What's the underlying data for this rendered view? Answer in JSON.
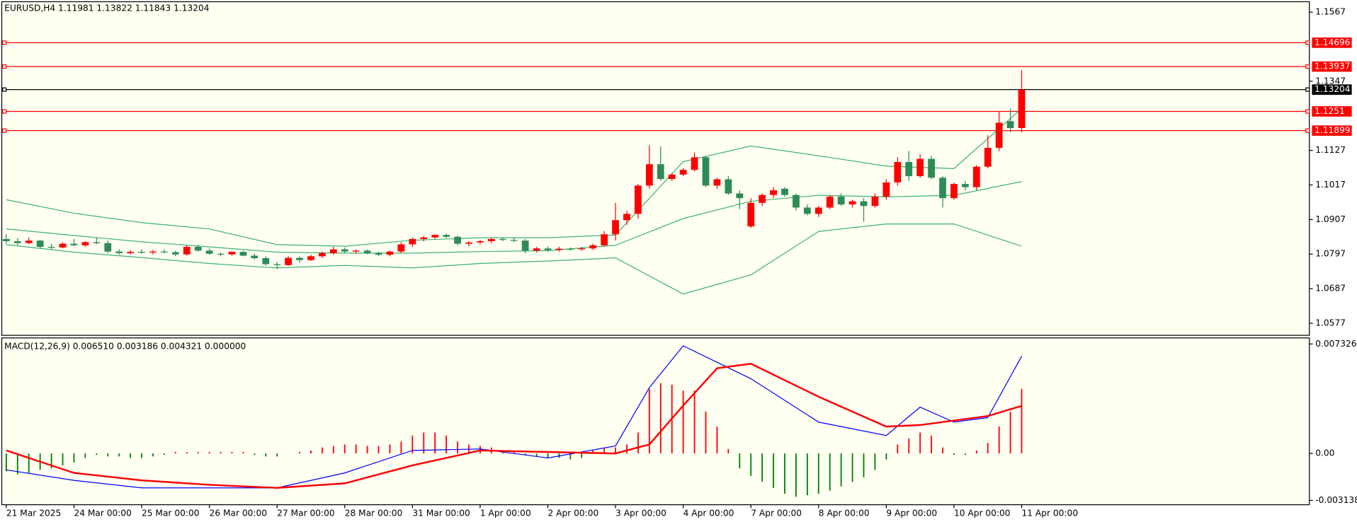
{
  "chart_data": [
    {
      "type": "candlestick",
      "title": "EURUSD,H4  1.11981 1.13822 1.11843 1.13204",
      "up_color": "#ff0000",
      "down_color": "#2e8b57",
      "open": [
        1.0845,
        1.0838,
        1.0832,
        1.084,
        1.082,
        1.0818,
        1.083,
        1.0825,
        1.0835,
        1.0832,
        1.0805,
        1.08,
        1.0804,
        1.0802,
        1.0805,
        1.0803,
        1.0796,
        1.082,
        1.0808,
        1.0798,
        1.0796,
        1.0804,
        1.0792,
        1.0784,
        1.0765,
        1.0762,
        1.0785,
        1.0778,
        1.079,
        1.08,
        1.0812,
        1.0805,
        1.0808,
        1.08,
        1.0795,
        1.0805,
        1.0828,
        1.0845,
        1.085,
        1.0858,
        1.0852,
        1.083,
        1.0834,
        1.0838,
        1.0845,
        1.0842,
        1.084,
        1.0808,
        1.0815,
        1.081,
        1.0814,
        1.0812,
        1.0815,
        1.0825,
        1.086,
        1.0905,
        1.0925,
        1.1015,
        1.1083,
        1.1036,
        1.105,
        1.1065,
        1.1105,
        1.1015,
        1.1035,
        1.099,
        1.0885,
        1.096,
        1.0985,
        1.1005,
        1.0985,
        1.0945,
        1.0925,
        1.0945,
        1.098,
        1.0955,
        1.0965,
        1.095,
        1.098,
        1.1025,
        1.109,
        1.1045,
        1.11,
        1.104,
        1.0975,
        1.102,
        1.101,
        1.1075,
        1.1135,
        1.122,
        1.11981
      ],
      "high": [
        1.086,
        1.0848,
        1.085,
        1.0842,
        1.083,
        1.0835,
        1.0845,
        1.0838,
        1.085,
        1.084,
        1.0812,
        1.081,
        1.0812,
        1.081,
        1.0812,
        1.0808,
        1.0825,
        1.0826,
        1.0815,
        1.0802,
        1.0806,
        1.0808,
        1.0798,
        1.079,
        1.0772,
        1.079,
        1.079,
        1.0795,
        1.0805,
        1.082,
        1.0818,
        1.0812,
        1.0812,
        1.0805,
        1.0808,
        1.0835,
        1.085,
        1.0855,
        1.086,
        1.0862,
        1.0856,
        1.0838,
        1.0842,
        1.0848,
        1.085,
        1.0848,
        1.0845,
        1.082,
        1.0822,
        1.082,
        1.0818,
        1.082,
        1.083,
        1.087,
        1.096,
        1.0935,
        1.102,
        1.1143,
        1.114,
        1.1055,
        1.107,
        1.112,
        1.111,
        1.104,
        1.1045,
        1.1,
        1.0975,
        1.099,
        1.101,
        1.101,
        1.099,
        1.0955,
        1.095,
        1.0985,
        1.099,
        1.097,
        1.0975,
        1.099,
        1.1035,
        1.1105,
        1.1125,
        1.1115,
        1.111,
        1.1045,
        1.1025,
        1.103,
        1.108,
        1.1175,
        1.125,
        1.126,
        1.13822
      ],
      "low": [
        1.083,
        1.0825,
        1.0828,
        1.0815,
        1.0812,
        1.0815,
        1.0822,
        1.082,
        1.0828,
        1.08,
        1.0795,
        1.0796,
        1.0798,
        1.0796,
        1.08,
        1.079,
        1.0792,
        1.0805,
        1.0795,
        1.079,
        1.0792,
        1.079,
        1.078,
        1.076,
        1.075,
        1.076,
        1.077,
        1.0775,
        1.0785,
        1.0795,
        1.08,
        1.0798,
        1.0796,
        1.079,
        1.079,
        1.08,
        1.082,
        1.0838,
        1.0845,
        1.0848,
        1.0825,
        1.0822,
        1.0828,
        1.0832,
        1.0838,
        1.0835,
        1.08,
        1.0802,
        1.0805,
        1.0805,
        1.0808,
        1.0808,
        1.081,
        1.082,
        1.084,
        1.089,
        1.091,
        1.1005,
        1.103,
        1.103,
        1.1045,
        1.106,
        1.101,
        1.1005,
        1.0985,
        1.094,
        1.088,
        1.095,
        1.0975,
        1.098,
        1.0935,
        1.092,
        1.0915,
        1.094,
        1.095,
        1.0945,
        1.09,
        1.0945,
        1.097,
        1.1015,
        1.103,
        1.104,
        1.1035,
        1.0945,
        1.097,
        1.1,
        1.1,
        1.107,
        1.1125,
        1.1185,
        1.11843
      ],
      "close": [
        1.0838,
        1.0832,
        1.084,
        1.082,
        1.0818,
        1.083,
        1.0825,
        1.0835,
        1.0832,
        1.0805,
        1.08,
        1.0804,
        1.0802,
        1.0805,
        1.0803,
        1.0796,
        1.082,
        1.0808,
        1.0798,
        1.0796,
        1.0804,
        1.0792,
        1.0784,
        1.0765,
        1.0762,
        1.0785,
        1.0778,
        1.079,
        1.08,
        1.0812,
        1.0805,
        1.0808,
        1.08,
        1.0795,
        1.0805,
        1.0828,
        1.0845,
        1.085,
        1.0858,
        1.0852,
        1.083,
        1.0834,
        1.0838,
        1.0845,
        1.0842,
        1.084,
        1.0808,
        1.0815,
        1.081,
        1.0814,
        1.0812,
        1.0815,
        1.0825,
        1.086,
        1.0905,
        1.0925,
        1.1015,
        1.1083,
        1.1036,
        1.105,
        1.1065,
        1.1105,
        1.1015,
        1.1035,
        1.099,
        1.0975,
        1.096,
        1.0985,
        1.1,
        1.0985,
        1.0945,
        1.0925,
        1.0945,
        1.098,
        1.0955,
        1.0965,
        1.095,
        1.098,
        1.1025,
        1.109,
        1.1045,
        1.11,
        1.104,
        1.0975,
        1.102,
        1.101,
        1.1075,
        1.1135,
        1.1215,
        1.1198,
        1.13204
      ],
      "bands": [
        {
          "color": "#3cb371",
          "x": [
            0,
            6,
            12,
            18,
            24,
            30,
            36,
            42,
            48,
            54,
            60,
            66,
            72,
            78,
            84,
            90
          ],
          "values": [
            1.097,
            1.0927,
            1.0897,
            1.0877,
            1.0827,
            1.0822,
            1.0841,
            1.0849,
            1.0849,
            1.0858,
            1.1091,
            1.1141,
            1.111,
            1.1077,
            1.1069,
            1.126
          ]
        },
        {
          "color": "#3cb371",
          "x": [
            0,
            6,
            12,
            18,
            24,
            30,
            36,
            42,
            48,
            54,
            60,
            66,
            72,
            78,
            84,
            90
          ],
          "values": [
            1.0877,
            1.0856,
            1.0836,
            1.082,
            1.0803,
            1.08,
            1.08,
            1.0805,
            1.0808,
            1.0825,
            1.091,
            1.0965,
            1.0984,
            1.0979,
            1.0984,
            1.1028
          ]
        },
        {
          "color": "#3cb371",
          "x": [
            0,
            6,
            12,
            18,
            24,
            30,
            36,
            42,
            48,
            54,
            60,
            66,
            72,
            78,
            84,
            90
          ],
          "values": [
            1.0827,
            1.0803,
            1.0786,
            1.0767,
            1.0753,
            1.0761,
            1.0753,
            1.0767,
            1.0775,
            1.0785,
            1.067,
            1.0731,
            1.0869,
            1.0893,
            1.0893,
            1.0822
          ]
        }
      ],
      "hlines": [
        {
          "value": 1.14696,
          "color": "#ff0000"
        },
        {
          "value": 1.13937,
          "color": "#ff0000"
        },
        {
          "value": 1.13204,
          "color": "#000000"
        },
        {
          "value": 1.1251,
          "color": "#ff0000"
        },
        {
          "value": 1.11899,
          "color": "#ff0000"
        }
      ],
      "ylim": [
        1.05385,
        1.16
      ],
      "yticks": [
        1.1567,
        1.1347,
        1.1127,
        1.1017,
        1.0907,
        1.0797,
        1.0687,
        1.0577
      ],
      "xlim": [
        -0.4,
        115.5
      ],
      "xticks": [
        {
          "value": 0,
          "label": "21 Mar 2025"
        },
        {
          "value": 6,
          "label": "24 Mar 00:00"
        },
        {
          "value": 12,
          "label": "25 Mar 00:00"
        },
        {
          "value": 18,
          "label": "26 Mar 00:00"
        },
        {
          "value": 24,
          "label": "27 Mar 00:00"
        },
        {
          "value": 30,
          "label": "28 Mar 00:00"
        },
        {
          "value": 36,
          "label": "31 Mar 00:00"
        },
        {
          "value": 42,
          "label": "1 Apr 00:00"
        },
        {
          "value": 48,
          "label": "2 Apr 00:00"
        },
        {
          "value": 54,
          "label": "3 Apr 00:00"
        },
        {
          "value": 60,
          "label": "4 Apr 00:00"
        },
        {
          "value": 66,
          "label": "7 Apr 00:00"
        },
        {
          "value": 72,
          "label": "8 Apr 00:00"
        },
        {
          "value": 78,
          "label": "9 Apr 00:00"
        },
        {
          "value": 84,
          "label": "10 Apr 00:00"
        },
        {
          "value": 90,
          "label": "11 Apr 00:00"
        }
      ]
    },
    {
      "type": "macd",
      "title": "MACD(12,26,9) 0.006510 0.003186 0.004321 0.000000",
      "histogram": {
        "up_color": "#ff0000",
        "down_color": "#008000",
        "values": [
          -0.0012,
          -0.0014,
          -0.0013,
          -0.0011,
          -0.001,
          -0.0008,
          -0.0006,
          -0.0003,
          -0.0001,
          -0.0002,
          -0.0002,
          -0.0003,
          -0.0003,
          -0.0002,
          -0.0001,
          0.0001,
          0.0001,
          0.0001,
          0.0001,
          0.0001,
          0.0001,
          0.0001,
          -0.0001,
          -0.0002,
          -0.0002,
          0.0,
          0.0001,
          0.0002,
          0.0004,
          0.0005,
          0.0006,
          0.0006,
          0.0005,
          0.0005,
          0.0006,
          0.0008,
          0.0012,
          0.0014,
          0.0014,
          0.0012,
          0.0008,
          0.0006,
          0.0005,
          0.0004,
          0.0002,
          0.0001,
          -0.0001,
          -0.0002,
          -0.0003,
          -0.0003,
          -0.0004,
          -0.0003,
          0.0002,
          0.0004,
          0.0004,
          0.0006,
          0.0014,
          0.0043,
          0.0047,
          0.0046,
          0.0042,
          0.0042,
          0.0028,
          0.0018,
          0.0003,
          -0.001,
          -0.0015,
          -0.0019,
          -0.0023,
          -0.0027,
          -0.0029,
          -0.0028,
          -0.0027,
          -0.0025,
          -0.0022,
          -0.0019,
          -0.0016,
          -0.0011,
          -0.0004,
          0.0006,
          0.001,
          0.0014,
          0.0012,
          0.0004,
          -0.0001,
          -0.0001,
          0.0002,
          0.0007,
          0.0018,
          0.0028,
          0.004321
        ]
      },
      "series": [
        {
          "color": "#0000ff",
          "x": [
            0,
            6,
            12,
            18,
            24,
            30,
            36,
            42,
            48,
            54,
            57,
            60,
            63,
            66,
            72,
            78,
            81,
            84,
            87,
            90
          ],
          "values": [
            -0.0011,
            -0.0018,
            -0.0023,
            -0.0023,
            -0.0023,
            -0.0013,
            0.0002,
            0.0003,
            -0.0003,
            0.0005,
            0.0044,
            0.0072,
            0.0061,
            0.005,
            0.0021,
            0.0012,
            0.0031,
            0.0021,
            0.0024,
            0.00651
          ]
        },
        {
          "color": "#ff0000",
          "x": [
            0,
            6,
            12,
            18,
            24,
            30,
            36,
            42,
            48,
            54,
            57,
            60,
            63,
            66,
            72,
            78,
            81,
            84,
            87,
            90
          ],
          "values": [
            0.0002,
            -0.0013,
            -0.0018,
            -0.0021,
            -0.0023,
            -0.002,
            -0.0008,
            0.0002,
            0.0001,
            0.0,
            0.0006,
            0.0032,
            0.0057,
            0.006,
            0.0038,
            0.0018,
            0.0019,
            0.0022,
            0.0025,
            0.003186
          ]
        }
      ],
      "ylim": [
        -0.00343,
        0.00773
      ],
      "yticks": [
        0.007326,
        {
          "value": 0,
          "label": "0.00"
        },
        -0.003138
      ],
      "xlim": [
        -0.4,
        115.5
      ]
    }
  ]
}
